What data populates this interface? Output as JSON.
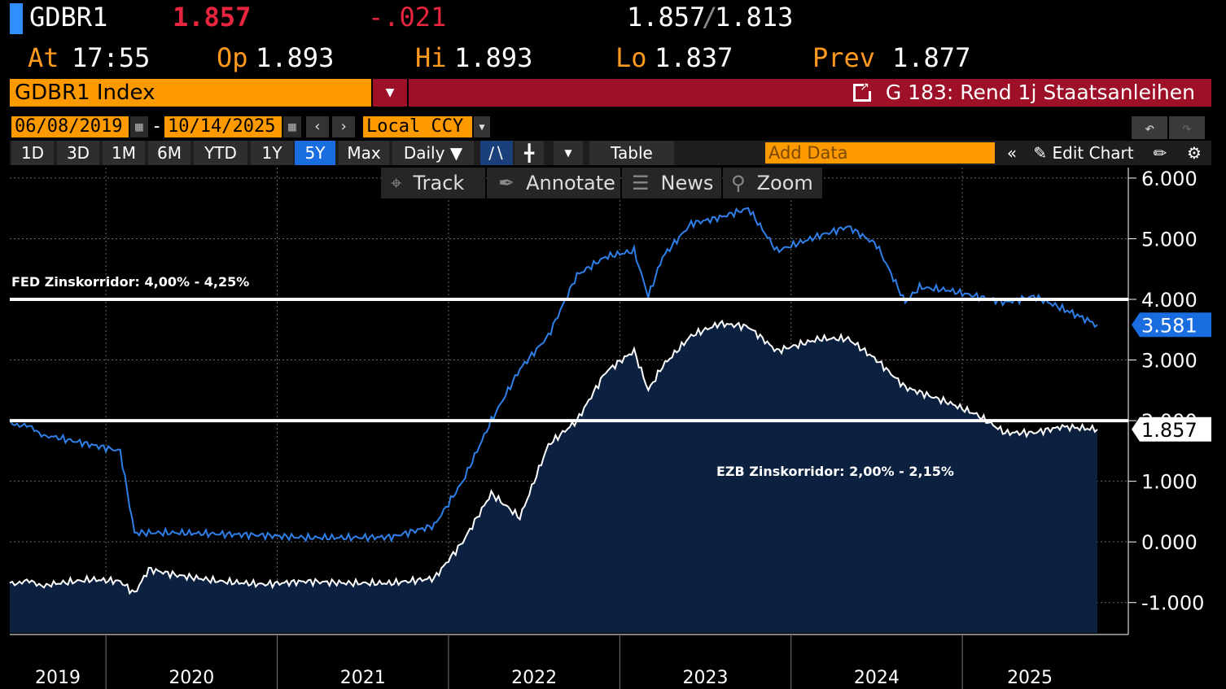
{
  "header": {
    "ticker": "GDBR1",
    "last": "1.857",
    "change": "-.021",
    "bid": "1.857",
    "ask": "1.813",
    "at_label": "At",
    "at_value": "17:55",
    "op_label": "Op",
    "op_value": "1.893",
    "hi_label": "Hi",
    "hi_value": "1.893",
    "lo_label": "Lo",
    "lo_value": "1.837",
    "prev_label": "Prev",
    "prev_value": "1.877"
  },
  "titlebar": {
    "security": "GDBR1 Index",
    "chart_name": "G 183: Rend 1j Staatsanleihen"
  },
  "controls": {
    "start_date": "06/08/2019",
    "end_date": "10/14/2025",
    "date_sep": "-",
    "currency": "Local CCY",
    "ranges": [
      "1D",
      "3D",
      "1M",
      "6M",
      "YTD",
      "1Y",
      "5Y",
      "Max"
    ],
    "active_range": "5Y",
    "frequency": "Daily",
    "table_label": "Table",
    "add_data_placeholder": "Add Data",
    "edit_chart_label": "Edit Chart"
  },
  "chart_toolbar": {
    "track": "Track",
    "annotate": "Annotate",
    "news": "News",
    "zoom": "Zoom"
  },
  "colors": {
    "us_series": "#2f7fe8",
    "de_series": "#ffffff",
    "area_fill": "#0c2140",
    "accent_orange": "#ff9900",
    "title_red": "#9e1027"
  },
  "chart_data": {
    "type": "line",
    "x_start": "2019-06",
    "x_end": "2025-10",
    "xticks": [
      "2019",
      "2020",
      "2021",
      "2022",
      "2023",
      "2024",
      "2025"
    ],
    "yticks": [
      6,
      5,
      4,
      3,
      2,
      1,
      0,
      -1
    ],
    "ytick_labels": [
      "6.000",
      "5.000",
      "4.000",
      "3.000",
      "2.000",
      "1.000",
      "0.000",
      "-1.000"
    ],
    "ylim": [
      -1.5,
      6.2
    ],
    "grid": true,
    "series": [
      {
        "values_x": [
          "2019-06",
          "2019-09",
          "2019-12",
          "2020-02",
          "2020-03",
          "2020-06",
          "2020-09",
          "2020-12",
          "2021-03",
          "2021-06",
          "2021-09",
          "2021-12",
          "2022-02",
          "2022-04",
          "2022-06",
          "2022-08",
          "2022-10",
          "2022-12",
          "2023-02",
          "2023-03",
          "2023-04",
          "2023-06",
          "2023-08",
          "2023-10",
          "2023-12",
          "2024-03",
          "2024-05",
          "2024-07",
          "2024-09",
          "2024-10",
          "2024-12",
          "2025-02",
          "2025-04",
          "2025-06",
          "2025-08",
          "2025-10"
        ],
        "values": [
          2.0,
          1.75,
          1.6,
          1.5,
          0.15,
          0.15,
          0.13,
          0.11,
          0.07,
          0.07,
          0.08,
          0.27,
          1.0,
          2.0,
          2.85,
          3.4,
          4.4,
          4.7,
          4.8,
          4.05,
          4.7,
          5.25,
          5.35,
          5.5,
          4.8,
          5.05,
          5.2,
          4.9,
          3.95,
          4.2,
          4.15,
          4.05,
          3.95,
          4.05,
          3.85,
          3.58
        ],
        "last_label": "3.581"
      },
      {
        "values_x": [
          "2019-06",
          "2019-09",
          "2019-12",
          "2020-02",
          "2020-03",
          "2020-04",
          "2020-06",
          "2020-09",
          "2020-12",
          "2021-03",
          "2021-06",
          "2021-09",
          "2021-12",
          "2022-02",
          "2022-04",
          "2022-06",
          "2022-08",
          "2022-10",
          "2022-12",
          "2023-02",
          "2023-03",
          "2023-04",
          "2023-06",
          "2023-08",
          "2023-10",
          "2023-12",
          "2024-03",
          "2024-05",
          "2024-07",
          "2024-09",
          "2024-12",
          "2025-02",
          "2025-04",
          "2025-06",
          "2025-08",
          "2025-10"
        ],
        "values": [
          -0.65,
          -0.7,
          -0.62,
          -0.65,
          -0.85,
          -0.45,
          -0.55,
          -0.65,
          -0.7,
          -0.65,
          -0.68,
          -0.68,
          -0.6,
          0.0,
          0.8,
          0.4,
          1.6,
          2.0,
          2.8,
          3.15,
          2.5,
          2.9,
          3.4,
          3.6,
          3.55,
          3.15,
          3.35,
          3.35,
          3.0,
          2.55,
          2.3,
          2.1,
          1.8,
          1.8,
          1.9,
          1.857
        ],
        "last_label": "1.857"
      }
    ],
    "annotations": [
      {
        "text": "FED Zinskorridor: 4,00% - 4,25%",
        "y": 4.0
      },
      {
        "text": "EZB Zinskorridor: 2,00% - 2,15%",
        "y": 2.0
      }
    ]
  }
}
